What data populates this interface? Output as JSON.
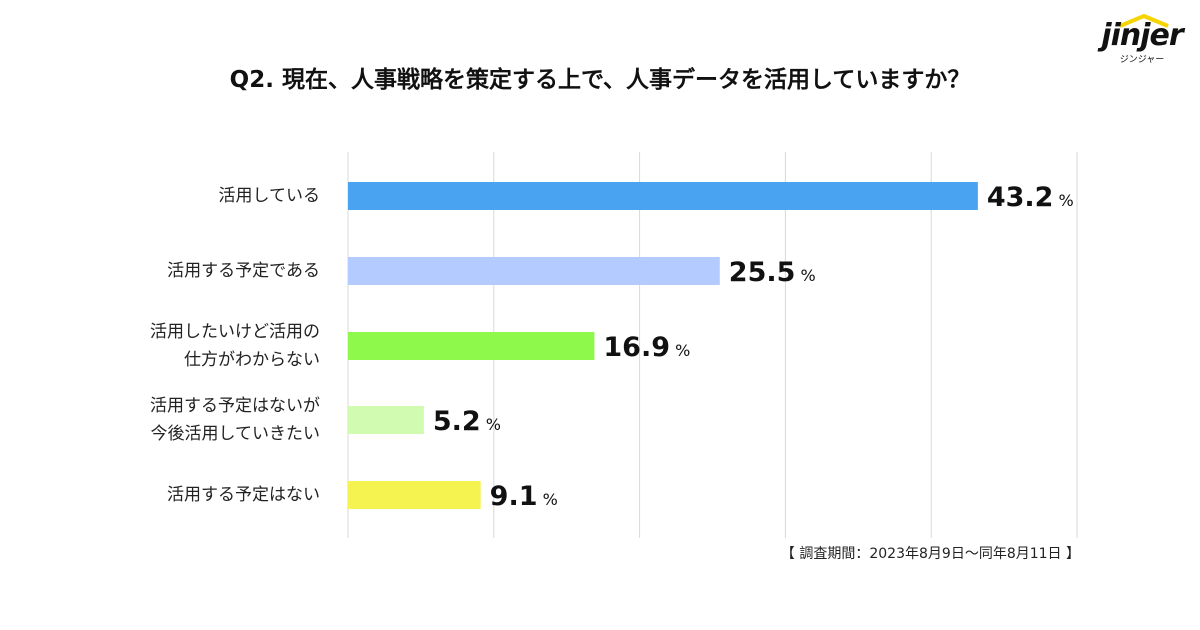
{
  "title": "Q2. 現在、人事戦略を策定する上で、人事データを活用していますか？",
  "logo": {
    "word": "jinjer",
    "kana": "ジンジャー",
    "accent": "#f5d400"
  },
  "period": "【 調査期間：2023年8月9日〜同年8月11日 】",
  "chart_data": {
    "type": "bar",
    "orientation": "horizontal",
    "title": "Q2. 現在、人事戦略を策定する上で、人事データを活用していますか？",
    "categories": [
      [
        "活用している"
      ],
      [
        "活用する予定である"
      ],
      [
        "活用したいけど活用の",
        "仕方がわからない"
      ],
      [
        "活用する予定はないが",
        "今後活用していきたい"
      ],
      [
        "活用する予定はない"
      ]
    ],
    "values": [
      43.2,
      25.5,
      16.9,
      5.2,
      9.1
    ],
    "value_labels": [
      "43.2",
      "25.5",
      "16.9",
      "5.2",
      "9.1"
    ],
    "unit": "%",
    "colors": [
      "#4aa3f0",
      "#b3cbff",
      "#8ef84b",
      "#d0fbb0",
      "#f5f34f"
    ],
    "xlim": [
      0,
      50
    ],
    "grid": true
  }
}
